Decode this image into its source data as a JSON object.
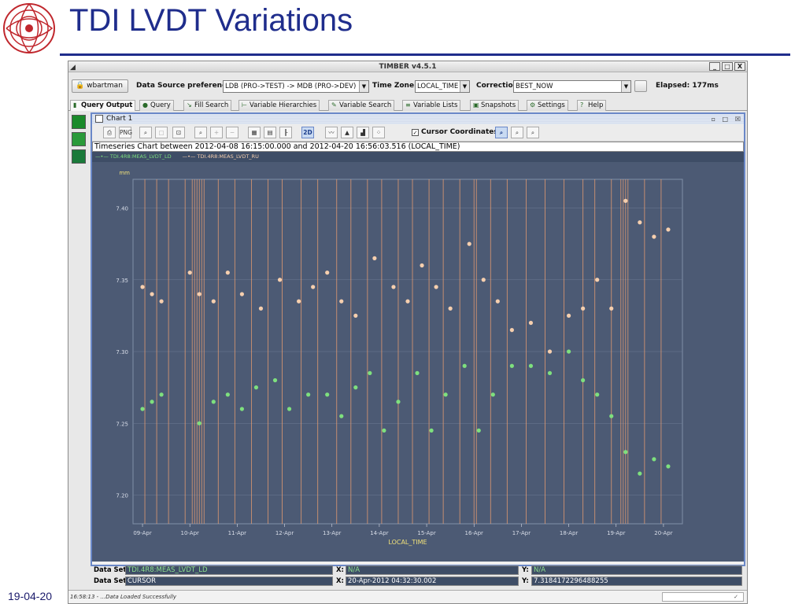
{
  "slide": {
    "title": "TDI LVDT Variations",
    "date": "19-04-20"
  },
  "window": {
    "title": "TIMBER v4.5.1",
    "controls": [
      "_",
      "□",
      "X"
    ]
  },
  "prefs": {
    "user": "wbartman",
    "ds_label": "Data Source preferences:",
    "ds_value": "LDB (PRO->TEST) -> MDB (PRO->DEV)",
    "tz_label": "Time Zone:",
    "tz_value": "LOCAL_TIME",
    "corr_label": "Correction",
    "corr_value": "BEST_NOW",
    "elapsed": "Elapsed:  177ms"
  },
  "tabs": [
    {
      "label": "Query Output",
      "active": true,
      "icon": "output-icon"
    },
    {
      "label": "Query",
      "active": false,
      "icon": "query-icon"
    },
    {
      "label": "Fill Search",
      "active": false,
      "icon": "fill-icon"
    },
    {
      "label": "Variable Hierarchies",
      "active": false,
      "icon": "hierarchy-icon"
    },
    {
      "label": "Variable Search",
      "active": false,
      "icon": "search-icon"
    },
    {
      "label": "Variable Lists",
      "active": false,
      "icon": "list-icon"
    },
    {
      "label": "Snapshots",
      "active": false,
      "icon": "snapshot-icon"
    },
    {
      "label": "Settings",
      "active": false,
      "icon": "settings-icon"
    },
    {
      "label": "Help",
      "active": false,
      "icon": "help-icon"
    }
  ],
  "chart_panel": {
    "name": "Chart 1",
    "toolbar": {
      "png_label": "PNG",
      "mode_2d": "2D",
      "cursor_label": "Cursor Coordinates"
    },
    "subtitle": "Timeseries Chart between 2012-04-08 16:15:00.000 and 2012-04-20 16:56:03.516 (LOCAL_TIME)"
  },
  "chart_data": {
    "type": "scatter",
    "title": "Timeseries Chart between 2012-04-08 16:15:00.000 and 2012-04-20 16:56:03.516 (LOCAL_TIME)",
    "xlabel": "LOCAL_TIME",
    "ylabel": "mm",
    "x_ticks": [
      "09-Apr",
      "10-Apr",
      "11-Apr",
      "12-Apr",
      "13-Apr",
      "14-Apr",
      "15-Apr",
      "16-Apr",
      "17-Apr",
      "18-Apr",
      "19-Apr",
      "20-Apr"
    ],
    "y_ticks": [
      "7.20",
      "7.25",
      "7.30",
      "7.35",
      "7.40"
    ],
    "ylim": [
      7.18,
      7.42
    ],
    "grid": true,
    "legend_position": "top",
    "series": [
      {
        "name": "TDI.4R8:MEAS_LVDT_LD",
        "color": "#7ee07e",
        "x": [
          9.0,
          9.2,
          9.4,
          10.2,
          10.5,
          10.8,
          11.1,
          11.4,
          11.8,
          12.1,
          12.5,
          12.9,
          13.2,
          13.5,
          13.8,
          14.1,
          14.4,
          14.8,
          15.1,
          15.4,
          15.8,
          16.1,
          16.4,
          16.8,
          17.2,
          17.6,
          18.0,
          18.3,
          18.6,
          18.9,
          19.2,
          19.5,
          19.8,
          20.1
        ],
        "y": [
          7.26,
          7.265,
          7.27,
          7.25,
          7.265,
          7.27,
          7.26,
          7.275,
          7.28,
          7.26,
          7.27,
          7.27,
          7.255,
          7.275,
          7.285,
          7.245,
          7.265,
          7.285,
          7.245,
          7.27,
          7.29,
          7.245,
          7.27,
          7.29,
          7.29,
          7.285,
          7.3,
          7.28,
          7.27,
          7.255,
          7.23,
          7.215,
          7.225,
          7.22
        ]
      },
      {
        "name": "TDI.4R8:MEAS_LVDT_RU",
        "color": "#f6cfae",
        "x": [
          9.0,
          9.2,
          9.4,
          10.0,
          10.2,
          10.5,
          10.8,
          11.1,
          11.5,
          11.9,
          12.3,
          12.6,
          12.9,
          13.2,
          13.5,
          13.9,
          14.3,
          14.6,
          14.9,
          15.2,
          15.5,
          15.9,
          16.2,
          16.5,
          16.8,
          17.2,
          17.6,
          18.0,
          18.3,
          18.6,
          18.9,
          19.2,
          19.5,
          19.8,
          20.1
        ],
        "y": [
          7.345,
          7.34,
          7.335,
          7.355,
          7.34,
          7.335,
          7.355,
          7.34,
          7.33,
          7.35,
          7.335,
          7.345,
          7.355,
          7.335,
          7.325,
          7.365,
          7.345,
          7.335,
          7.36,
          7.345,
          7.33,
          7.375,
          7.35,
          7.335,
          7.315,
          7.32,
          7.3,
          7.325,
          7.33,
          7.35,
          7.33,
          7.405,
          7.39,
          7.38,
          7.385
        ]
      }
    ]
  },
  "dataset": {
    "row1_label": "Data Set:",
    "row1_value": "TDI.4R8:MEAS_LVDT_LD",
    "row1_x_label": "X:",
    "row1_x_value": "N/A",
    "row1_y_label": "Y:",
    "row1_y_value": "N/A",
    "row2_label": "Data Set:",
    "row2_value": "CURSOR",
    "row2_x_label": "X:",
    "row2_x_value": "20-Apr-2012 04:32:30.002",
    "row2_y_label": "Y:",
    "row2_y_value": "7.3184172296488255"
  },
  "status": {
    "message": "16:58:13 - ...Data Loaded Successfully"
  }
}
